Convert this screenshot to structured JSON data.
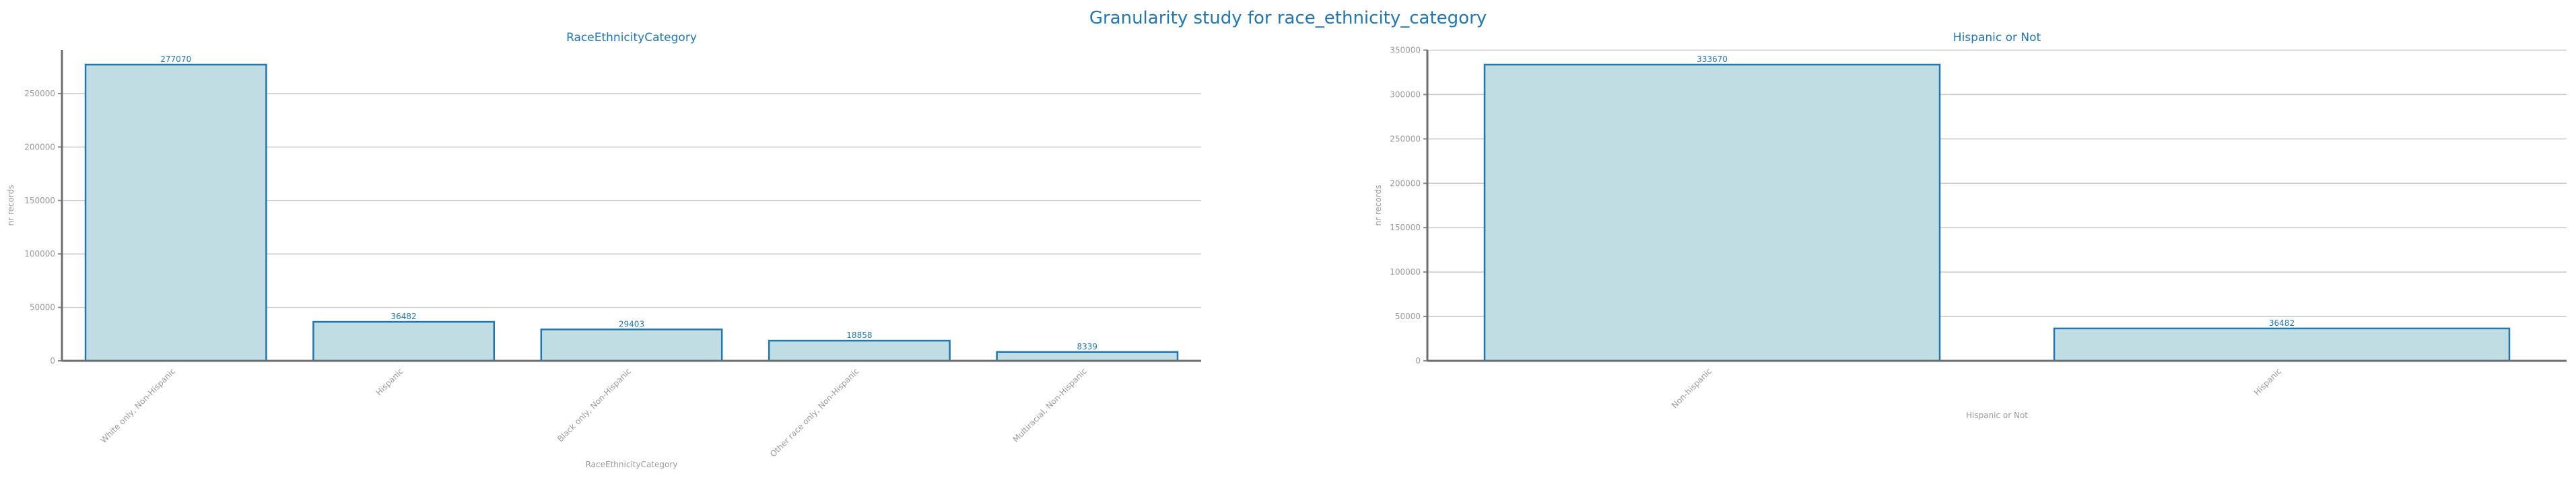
{
  "figure": {
    "title": "Granularity study for race_ethnicity_category"
  },
  "chart_data": [
    {
      "type": "bar",
      "title": "RaceEthnicityCategory",
      "xlabel": "RaceEthnicityCategory",
      "ylabel": "nr records",
      "categories": [
        "White only, Non-Hispanic",
        "Hispanic",
        "Black only, Non-Hispanic",
        "Other race only, Non-Hispanic",
        "Multiracial, Non-Hispanic"
      ],
      "values": [
        277070,
        36482,
        29403,
        18858,
        8339
      ],
      "ylim": [
        0,
        290929
      ],
      "yticks": [
        0,
        50000,
        100000,
        150000,
        200000,
        250000
      ],
      "grid": true
    },
    {
      "type": "bar",
      "title": "Hispanic or Not",
      "xlabel": "Hispanic or Not",
      "ylabel": "nr records",
      "categories": [
        "Non-hispanic",
        "Hispanic"
      ],
      "values": [
        333670,
        36482
      ],
      "ylim": [
        0,
        350354
      ],
      "yticks": [
        0,
        50000,
        100000,
        150000,
        200000,
        250000,
        300000,
        350000
      ],
      "grid": true
    }
  ]
}
